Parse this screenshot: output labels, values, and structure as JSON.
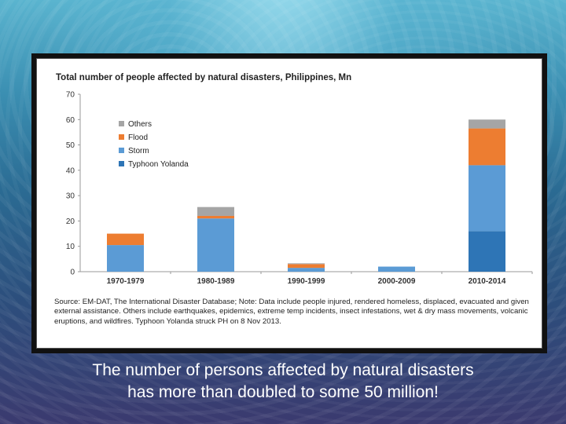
{
  "chart_data": {
    "type": "bar",
    "stacked": true,
    "title": "Total number of people affected by natural disasters, Philippines, Mn",
    "categories": [
      "1970-1979",
      "1980-1989",
      "1990-1999",
      "2000-2009",
      "2010-2014"
    ],
    "yticks": [
      "0",
      "10",
      "20",
      "30",
      "40",
      "50",
      "60",
      "70"
    ],
    "ylim": [
      0,
      70
    ],
    "grid": false,
    "legend_position": "top-left",
    "series": [
      {
        "name": "Typhoon Yolanda",
        "color": "#2e75b6",
        "values": [
          0,
          0,
          0,
          0,
          16
        ]
      },
      {
        "name": "Storm",
        "color": "#5b9bd5",
        "values": [
          10.5,
          21,
          1.5,
          2,
          26
        ]
      },
      {
        "name": "Flood",
        "color": "#ed7d31",
        "values": [
          4.5,
          1,
          1.5,
          0,
          14.5
        ]
      },
      {
        "name": "Others",
        "color": "#a5a5a5",
        "values": [
          0,
          3.5,
          0.3,
          0,
          3.5
        ]
      }
    ]
  },
  "source_note": "Source: EM-DAT, The International Disaster Database; Note: Data include people injured, rendered homeless, displaced, evacuated and given external assistance. Others include earthquakes, epidemics, extreme temp incidents, insect infestations, wet & dry mass movements, volcanic eruptions, and wildfires. Typhoon Yolanda struck PH on 8 Nov 2013.",
  "caption": {
    "line1": "The number of persons affected by natural disasters",
    "line2": "has more than doubled to some 50 million!"
  }
}
